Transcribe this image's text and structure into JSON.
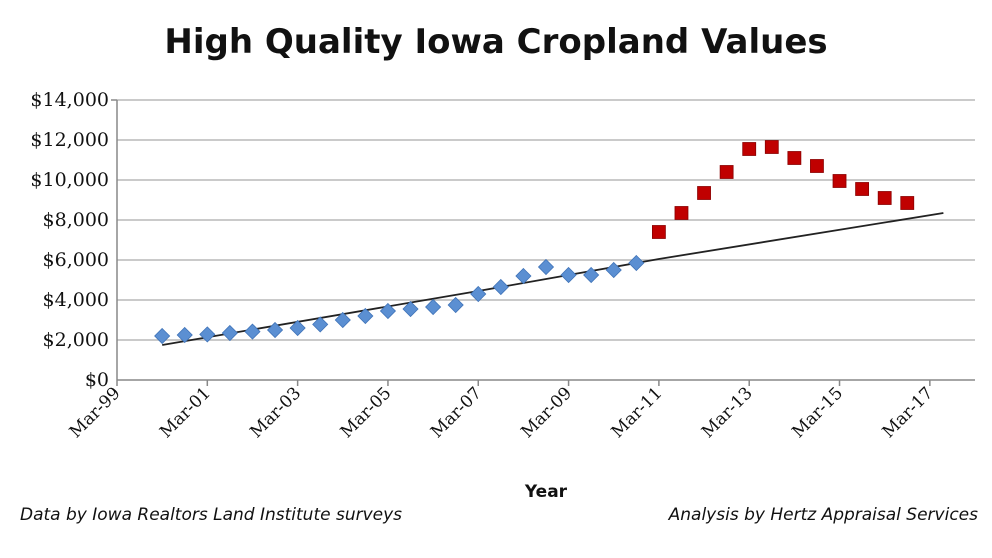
{
  "chart_data": {
    "type": "scatter",
    "title": "High Quality Iowa Cropland Values",
    "xlabel": "Year",
    "ylabel": "",
    "x_tick_labels": [
      "Mar-99",
      "Mar-01",
      "Mar-03",
      "Mar-05",
      "Mar-07",
      "Mar-09",
      "Mar-11",
      "Mar-13",
      "Mar-15",
      "Mar-17"
    ],
    "y_tick_labels": [
      "$0",
      "$2,000",
      "$4,000",
      "$6,000",
      "$8,000",
      "$10,000",
      "$12,000",
      "$14,000"
    ],
    "ylim": [
      0,
      14000
    ],
    "xlim": [
      1999.0,
      2018.0
    ],
    "grid": true,
    "series": [
      {
        "marker": "diamond",
        "color": "#5B8FD2",
        "points": [
          [
            2000.0,
            2200
          ],
          [
            2000.5,
            2250
          ],
          [
            2001.0,
            2280
          ],
          [
            2001.5,
            2350
          ],
          [
            2002.0,
            2420
          ],
          [
            2002.5,
            2500
          ],
          [
            2003.0,
            2600
          ],
          [
            2003.5,
            2780
          ],
          [
            2004.0,
            3000
          ],
          [
            2004.5,
            3200
          ],
          [
            2005.0,
            3450
          ],
          [
            2005.5,
            3550
          ],
          [
            2006.0,
            3650
          ],
          [
            2006.5,
            3750
          ],
          [
            2007.0,
            4300
          ],
          [
            2007.5,
            4650
          ],
          [
            2008.0,
            5200
          ],
          [
            2008.5,
            5650
          ],
          [
            2009.0,
            5250
          ],
          [
            2009.5,
            5250
          ],
          [
            2010.0,
            5500
          ],
          [
            2010.5,
            5850
          ]
        ]
      },
      {
        "marker": "square",
        "color": "#C00000",
        "points": [
          [
            2011.0,
            7400
          ],
          [
            2011.5,
            8350
          ],
          [
            2012.0,
            9350
          ],
          [
            2012.5,
            10400
          ],
          [
            2013.0,
            11550
          ],
          [
            2013.5,
            11650
          ],
          [
            2014.0,
            11100
          ],
          [
            2014.5,
            10700
          ],
          [
            2015.0,
            9950
          ],
          [
            2015.5,
            9550
          ],
          [
            2016.0,
            9100
          ],
          [
            2016.5,
            8850
          ]
        ]
      },
      {
        "marker": "line",
        "color": "#222222",
        "points": [
          [
            2000.0,
            1750
          ],
          [
            2007.0,
            4450
          ],
          [
            2011.0,
            6050
          ],
          [
            2017.3,
            8350
          ]
        ]
      }
    ]
  },
  "notes": {
    "left": "Data by Iowa Realtors Land Institute surveys",
    "right": "Analysis by Hertz Appraisal Services"
  }
}
